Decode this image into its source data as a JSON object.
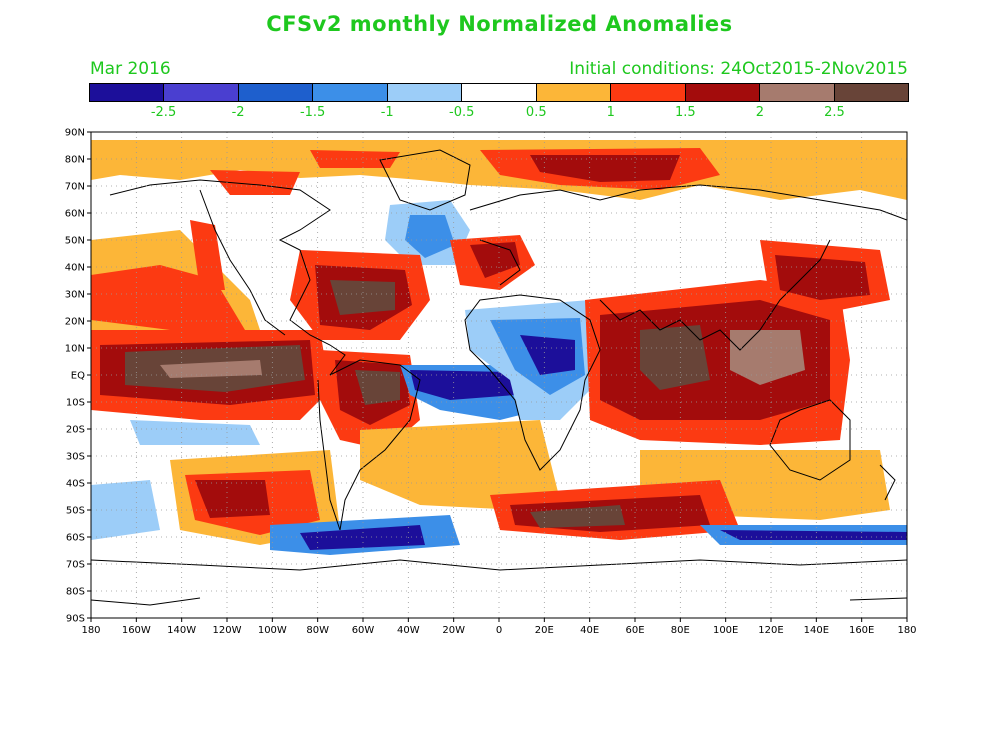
{
  "title": "CFSv2 monthly Normalized Anomalies",
  "valid_month": "Mar 2016",
  "initial_conditions": "Initial conditions: 24Oct2015-2Nov2015",
  "colorbar": {
    "colors": [
      "#1c0f9a",
      "#4a3fd0",
      "#1e5fcd",
      "#3c8fe8",
      "#9ccdf8",
      "#ffffff",
      "#fcb638",
      "#fc3a12",
      "#a30c0c",
      "#a67b6e",
      "#684438"
    ],
    "labels": [
      "-2.5",
      "-2",
      "-1.5",
      "-1",
      "-0.5",
      "0.5",
      "1",
      "1.5",
      "2",
      "2.5"
    ]
  },
  "lat_labels": [
    "90N",
    "80N",
    "70N",
    "60N",
    "50N",
    "40N",
    "30N",
    "20N",
    "10N",
    "EQ",
    "10S",
    "20S",
    "30S",
    "40S",
    "50S",
    "60S",
    "70S",
    "80S",
    "90S"
  ],
  "lon_labels": [
    "180",
    "160W",
    "140W",
    "120W",
    "100W",
    "80W",
    "60W",
    "40W",
    "20W",
    "0",
    "20E",
    "40E",
    "60E",
    "80E",
    "100E",
    "120E",
    "140E",
    "160E",
    "180"
  ]
}
